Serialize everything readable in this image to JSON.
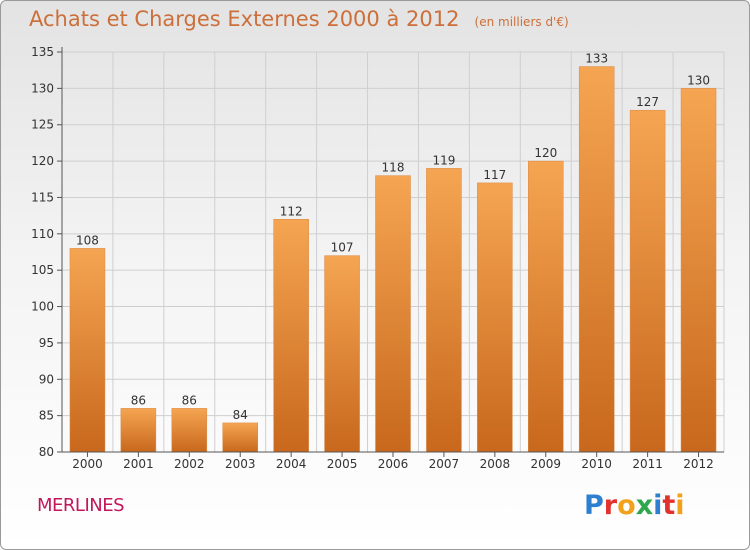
{
  "header": {
    "title": "Achats et Charges Externes 2000 à 2012",
    "unit": "(en milliers d'€)"
  },
  "footer": {
    "commune": "MERLINES",
    "brand": "Proxiti",
    "brand_colors": [
      "#2e7fd0",
      "#e2322e",
      "#f2a21a",
      "#2ea84a",
      "#2e7fd0",
      "#e2322e",
      "#f2a21a"
    ]
  },
  "colors": {
    "bar_top": "#f5a552",
    "bar_bottom": "#c8681d",
    "title": "#cc6f3a",
    "commune": "#c2185b",
    "axis": "#555555"
  },
  "chart_data": {
    "type": "bar",
    "categories": [
      "2000",
      "2001",
      "2002",
      "2003",
      "2004",
      "2005",
      "2006",
      "2007",
      "2008",
      "2009",
      "2010",
      "2011",
      "2012"
    ],
    "values": [
      108,
      86,
      86,
      84,
      112,
      107,
      118,
      119,
      117,
      120,
      133,
      127,
      130
    ],
    "ylim": [
      80,
      135
    ],
    "yticks": [
      80,
      85,
      90,
      95,
      100,
      105,
      110,
      115,
      120,
      125,
      130,
      135
    ],
    "grid": true,
    "data_labels": true
  }
}
